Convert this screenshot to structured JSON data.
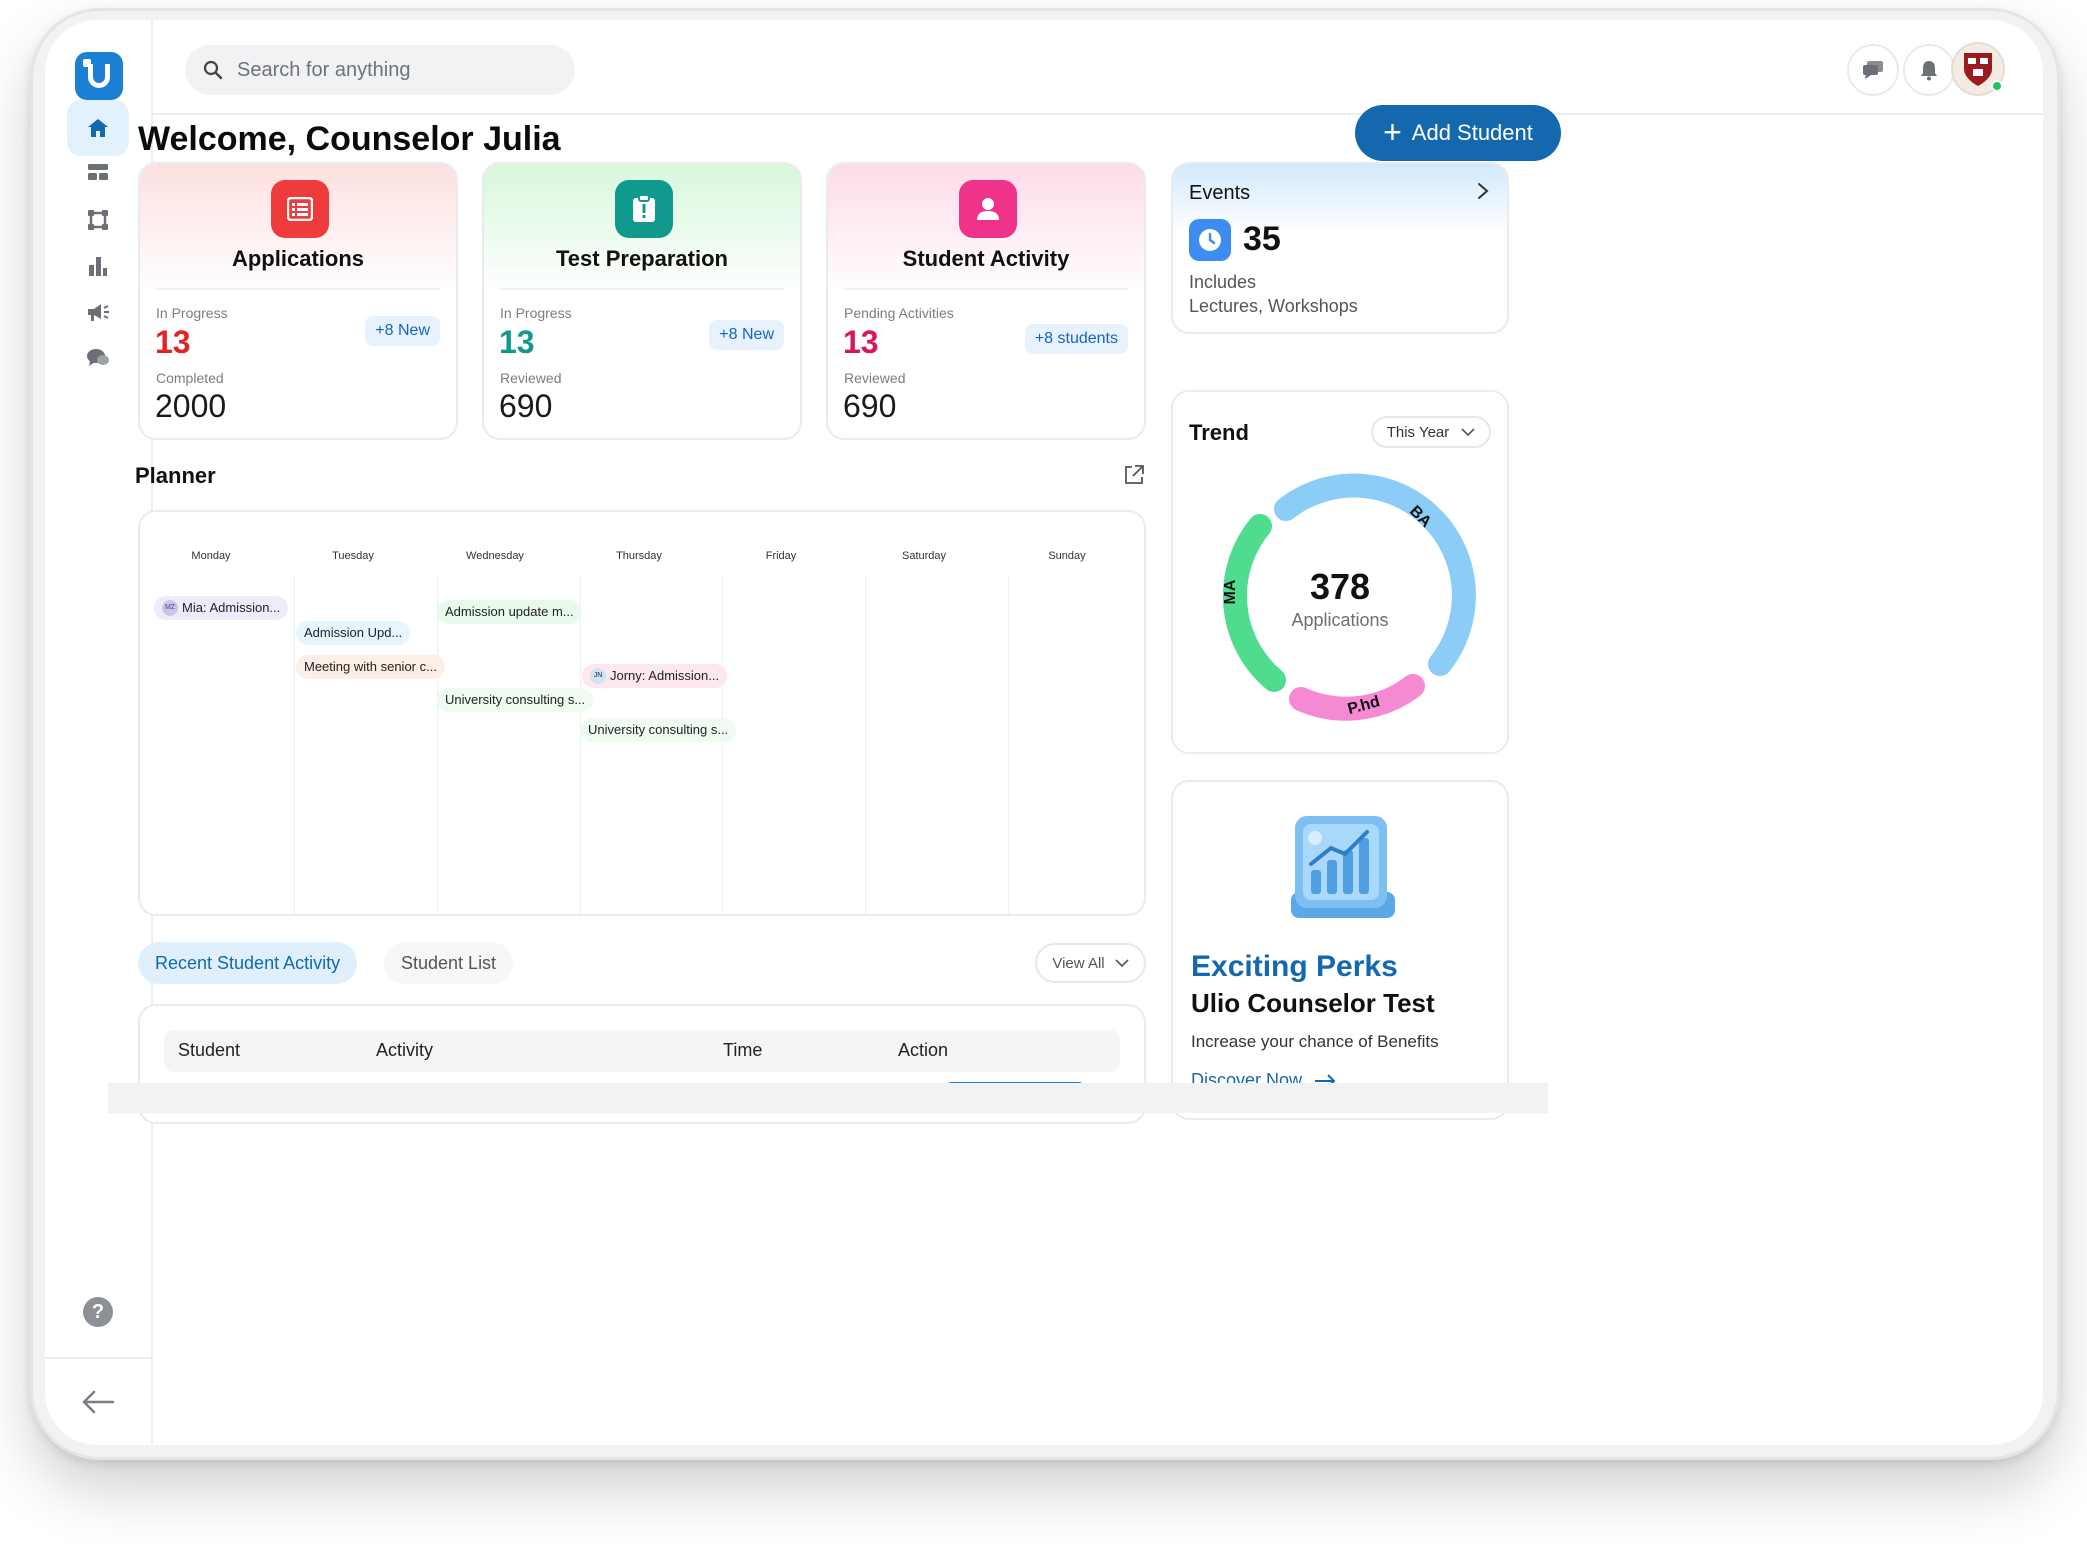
{
  "search": {
    "placeholder": "Search for anything"
  },
  "welcome": "Welcome, Counselor Julia",
  "add_student": "Add Student",
  "cards": [
    {
      "title": "Applications",
      "label1": "In Progress",
      "value1": "13",
      "badge": "+8 New",
      "label2": "Completed",
      "value2": "2000",
      "accent": "#e02424"
    },
    {
      "title": "Test Preparation",
      "label1": "In Progress",
      "value1": "13",
      "badge": "+8 New",
      "label2": "Reviewed",
      "value2": "690",
      "accent": "#11998e"
    },
    {
      "title": "Student Activity",
      "label1": "Pending Activities",
      "value1": "13",
      "badge": "+8 students",
      "label2": "Reviewed",
      "value2": "690",
      "accent": "#d6165f"
    }
  ],
  "events": {
    "title": "Events",
    "count": "35",
    "includes": "Includes",
    "types": "Lectures, Workshops"
  },
  "planner": {
    "title": "Planner",
    "days": [
      "Monday",
      "Tuesday",
      "Wednesday",
      "Thursday",
      "Friday",
      "Saturday",
      "Sunday"
    ],
    "events": {
      "mon1": "Mia: Admission...",
      "mon1_initials": "MZ",
      "tue1": "Admission Upd...",
      "tue2": "Meeting with senior c...",
      "wed1": "Admission update m...",
      "wed2": "University consulting s...",
      "thu1": "Jorny: Admission...",
      "thu1_initials": "JN",
      "thu2": "University consulting s..."
    }
  },
  "tabs": {
    "active": "Recent Student Activity",
    "inactive": "Student List"
  },
  "view_all": "View All",
  "table": {
    "headers": [
      "Student",
      "Activity",
      "Time",
      "Action"
    ]
  },
  "trend": {
    "title": "Trend",
    "period": "This Year",
    "total": "378",
    "total_label": "Applications",
    "segments": [
      {
        "name": "BA",
        "color": "#8ccdf7"
      },
      {
        "name": "P.hd",
        "color": "#f58ad3"
      },
      {
        "name": "MA",
        "color": "#4fdc8f"
      }
    ]
  },
  "perks": {
    "title": "Exciting Perks",
    "subtitle": "Ulio Counselor Test",
    "desc": "Increase your chance of Benefits",
    "cta": "Discover Now"
  }
}
